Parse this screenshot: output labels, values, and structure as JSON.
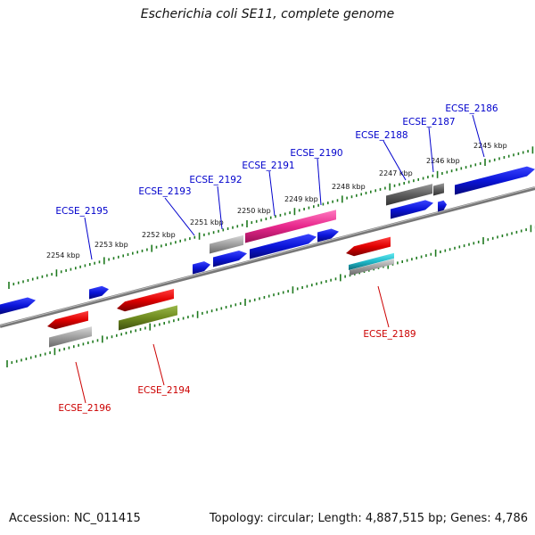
{
  "title": "Escherichia coli SE11, complete genome",
  "footer": {
    "accession": "Accession: NC_011415",
    "summary": "Topology: circular; Length: 4,887,515 bp; Genes: 4,786"
  },
  "colors": {
    "forward_label": "#0000cc",
    "reverse_label": "#cc0000",
    "ruler": "#1f7a1f",
    "backbone": "#777777",
    "blue": "#0a14d8",
    "red": "#e00000",
    "gray": "#9a9a9a",
    "darkgray": "#5e5e5e",
    "pink": "#e8288c",
    "olive": "#6e8a1e",
    "teal": "#20b8c8"
  },
  "kbp_labels": [
    "2254 kbp",
    "2253 kbp",
    "2252 kbp",
    "2251 kbp",
    "2250 kbp",
    "2249 kbp",
    "2248 kbp",
    "2247 kbp",
    "2246 kbp",
    "2245 kbp"
  ],
  "gene_labels": {
    "ECSE_2195": "ECSE_2195",
    "ECSE_2193": "ECSE_2193",
    "ECSE_2192": "ECSE_2192",
    "ECSE_2191": "ECSE_2191",
    "ECSE_2190": "ECSE_2190",
    "ECSE_2188": "ECSE_2188",
    "ECSE_2187": "ECSE_2187",
    "ECSE_2186": "ECSE_2186",
    "ECSE_2196": "ECSE_2196",
    "ECSE_2194": "ECSE_2194",
    "ECSE_2189": "ECSE_2189"
  }
}
